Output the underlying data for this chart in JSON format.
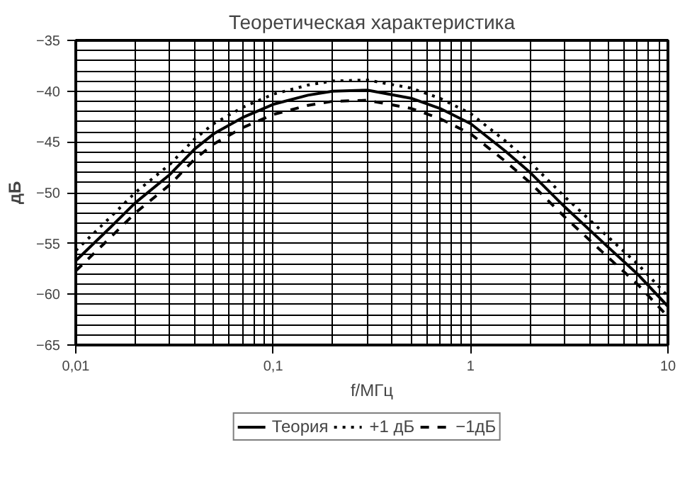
{
  "chart_data": {
    "type": "line",
    "title": "Теоретическая характеристика",
    "xlabel": "f/МГц",
    "ylabel": "дБ",
    "x": [
      0.01,
      0.015,
      0.02,
      0.03,
      0.04,
      0.05,
      0.07,
      0.1,
      0.15,
      0.2,
      0.3,
      0.5,
      0.7,
      1,
      1.5,
      2,
      3,
      5,
      7,
      10
    ],
    "series": [
      {
        "name": "Теория",
        "color": "#000000",
        "line_style": "solid",
        "values": [
          -56.7,
          -53.4,
          -51.0,
          -48.2,
          -45.7,
          -44.2,
          -42.6,
          -41.3,
          -40.4,
          -40.0,
          -39.9,
          -40.7,
          -41.7,
          -43.2,
          -45.9,
          -48.0,
          -51.4,
          -55.4,
          -58.0,
          -61.2
        ]
      },
      {
        "name": "+1 дБ",
        "color": "#000000",
        "line_style": "dotted",
        "values": [
          -55.7,
          -52.4,
          -50.0,
          -47.2,
          -44.7,
          -43.2,
          -41.6,
          -40.3,
          -39.4,
          -39.0,
          -38.9,
          -39.7,
          -40.7,
          -42.2,
          -44.9,
          -47.0,
          -50.4,
          -54.4,
          -57.0,
          -60.2
        ]
      },
      {
        "name": "−1дБ",
        "color": "#000000",
        "line_style": "dashed",
        "values": [
          -57.7,
          -54.4,
          -52.0,
          -49.2,
          -46.7,
          -45.2,
          -43.6,
          -42.3,
          -41.4,
          -41.0,
          -40.9,
          -41.7,
          -42.7,
          -44.2,
          -46.9,
          -49.0,
          -52.4,
          -56.4,
          -59.0,
          -62.2
        ]
      }
    ],
    "log": "x",
    "xlim": [
      0.01,
      10
    ],
    "xticks": [
      {
        "value": 0.01,
        "label": "0,01"
      },
      {
        "value": 0.1,
        "label": "0,1"
      },
      {
        "value": 1,
        "label": "1"
      },
      {
        "value": 10,
        "label": "10"
      }
    ],
    "ylim": [
      -65,
      -35
    ],
    "yticks": [
      -65,
      -60,
      -55,
      -50,
      -45,
      -40,
      -35
    ],
    "grid": true,
    "legend": "bottom",
    "marker": "none"
  }
}
